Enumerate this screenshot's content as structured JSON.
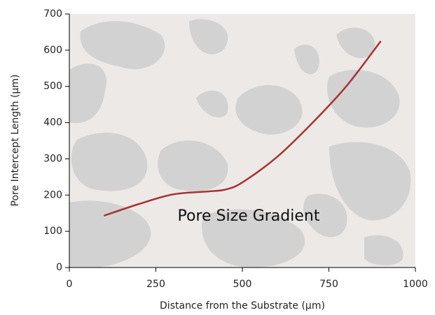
{
  "chart_data": {
    "type": "line",
    "x_label": "Distance from the Substrate (µm)",
    "y_label": "Pore Intercept Length (µm)",
    "annotation": "Pore Size Gradient",
    "x": [
      100,
      200,
      300,
      400,
      450,
      500,
      600,
      700,
      800,
      900
    ],
    "series": [
      {
        "color": "#a83236",
        "values": [
          143,
          175,
          202,
          210,
          215,
          235,
          305,
          397,
          500,
          625
        ]
      }
    ],
    "xlim": [
      0,
      1000
    ],
    "xticks": [
      0,
      250,
      500,
      750,
      1000
    ],
    "ylim": [
      0,
      700
    ],
    "yticks": [
      0,
      100,
      200,
      300,
      400,
      500,
      600,
      700
    ]
  }
}
